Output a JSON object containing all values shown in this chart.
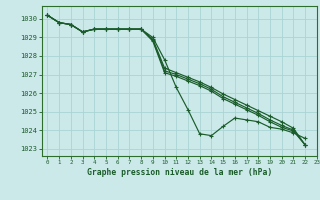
{
  "title": "Graphe pression niveau de la mer (hPa)",
  "background_color": "#cce9e9",
  "grid_color": "#aad4d4",
  "line_color": "#1a5c2a",
  "spine_color": "#2d6e2d",
  "xlim": [
    -0.5,
    23
  ],
  "ylim": [
    1022.6,
    1030.7
  ],
  "yticks": [
    1023,
    1024,
    1025,
    1026,
    1027,
    1028,
    1029,
    1030
  ],
  "xticks": [
    0,
    1,
    2,
    3,
    4,
    5,
    6,
    7,
    8,
    9,
    10,
    11,
    12,
    13,
    14,
    15,
    16,
    17,
    18,
    19,
    20,
    21,
    22,
    23
  ],
  "series": [
    [
      1030.2,
      1029.8,
      1029.7,
      1029.3,
      1029.45,
      1029.45,
      1029.45,
      1029.45,
      1029.45,
      1029.0,
      1027.8,
      1026.3,
      1025.1,
      1023.8,
      1023.7,
      1024.2,
      1024.65,
      1024.55,
      1024.45,
      1024.15,
      1024.05,
      1023.85,
      1023.55
    ],
    [
      1030.2,
      1029.8,
      1029.7,
      1029.3,
      1029.45,
      1029.45,
      1029.45,
      1029.45,
      1029.45,
      1028.9,
      1027.35,
      1027.1,
      1026.85,
      1026.6,
      1026.3,
      1025.95,
      1025.65,
      1025.35,
      1025.05,
      1024.75,
      1024.45,
      1024.1,
      1023.2
    ],
    [
      1030.2,
      1029.8,
      1029.7,
      1029.3,
      1029.45,
      1029.45,
      1029.45,
      1029.45,
      1029.45,
      1028.85,
      1027.2,
      1027.0,
      1026.75,
      1026.5,
      1026.2,
      1025.8,
      1025.5,
      1025.2,
      1024.9,
      1024.55,
      1024.25,
      1024.0,
      1023.2
    ],
    [
      1030.2,
      1029.8,
      1029.7,
      1029.3,
      1029.45,
      1029.45,
      1029.45,
      1029.45,
      1029.45,
      1028.8,
      1027.1,
      1026.9,
      1026.65,
      1026.4,
      1026.1,
      1025.7,
      1025.4,
      1025.1,
      1024.8,
      1024.45,
      1024.15,
      1023.95,
      1023.2
    ]
  ]
}
